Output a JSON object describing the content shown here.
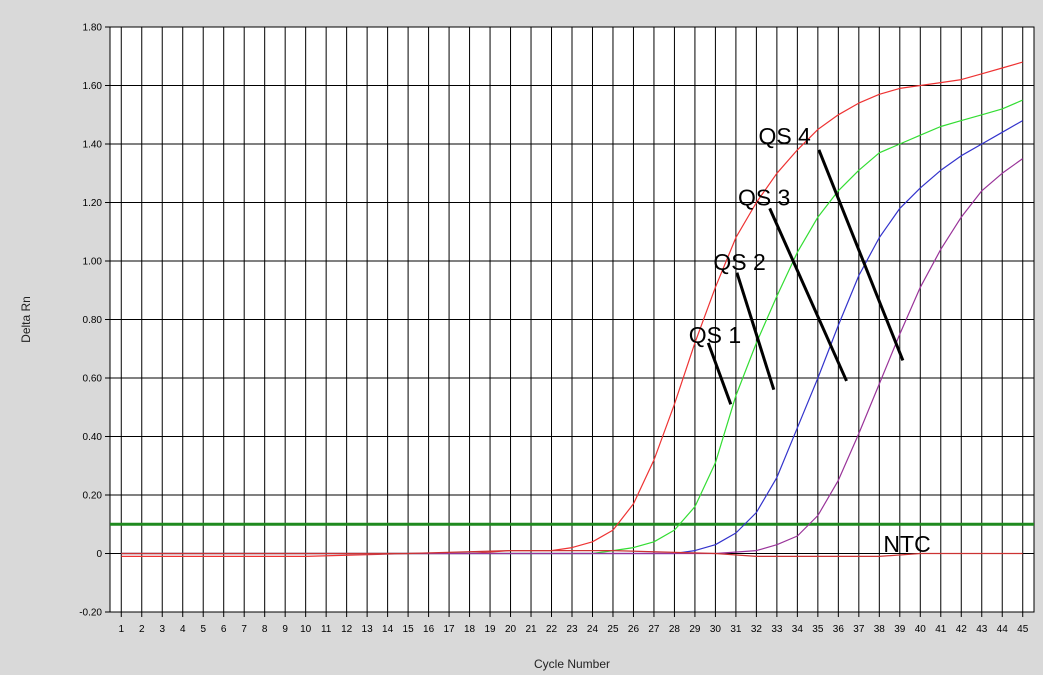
{
  "chart_data": {
    "type": "line",
    "title": "",
    "xlabel": "Cycle Number",
    "ylabel": "Delta Rn",
    "xlim": [
      1,
      45
    ],
    "ylim": [
      -0.2,
      1.8
    ],
    "x_ticks": [
      1,
      2,
      3,
      4,
      5,
      6,
      7,
      8,
      9,
      10,
      11,
      12,
      13,
      14,
      15,
      16,
      17,
      18,
      19,
      20,
      21,
      22,
      23,
      24,
      25,
      26,
      27,
      28,
      29,
      30,
      31,
      32,
      33,
      34,
      35,
      36,
      37,
      38,
      39,
      40,
      41,
      42,
      43,
      44,
      45
    ],
    "y_ticks": [
      {
        "value": 1.8,
        "label": "1.80"
      },
      {
        "value": 1.6,
        "label": "1.60"
      },
      {
        "value": 1.4,
        "label": "1.40"
      },
      {
        "value": 1.2,
        "label": "1.20"
      },
      {
        "value": 1.0,
        "label": "1.00"
      },
      {
        "value": 0.8,
        "label": "0.80"
      },
      {
        "value": 0.6,
        "label": "0.60"
      },
      {
        "value": 0.4,
        "label": "0.40"
      },
      {
        "value": 0.2,
        "label": "0.20"
      },
      {
        "value": 0.0,
        "label": "0"
      },
      {
        "value": -0.2,
        "label": "-0.20"
      }
    ],
    "grid": true,
    "threshold": {
      "value": 0.1,
      "color": "#1f8a1f"
    },
    "series": [
      {
        "key": "qs4",
        "color": "#ee3333",
        "x": [
          1,
          5,
          10,
          15,
          18,
          20,
          21,
          22,
          23,
          24,
          25,
          26,
          27,
          28,
          29,
          30,
          31,
          32,
          33,
          34,
          35,
          36,
          37,
          38,
          39,
          40,
          41,
          42,
          43,
          44,
          45
        ],
        "y": [
          -0.01,
          -0.01,
          -0.01,
          0.0,
          0.0,
          0.01,
          0.01,
          0.01,
          0.02,
          0.04,
          0.08,
          0.17,
          0.32,
          0.51,
          0.72,
          0.91,
          1.08,
          1.2,
          1.3,
          1.38,
          1.45,
          1.5,
          1.54,
          1.57,
          1.59,
          1.6,
          1.61,
          1.62,
          1.64,
          1.66,
          1.68
        ]
      },
      {
        "key": "qs3",
        "color": "#33dd33",
        "x": [
          1,
          5,
          10,
          15,
          20,
          24,
          25,
          26,
          27,
          28,
          29,
          30,
          31,
          32,
          33,
          34,
          35,
          36,
          37,
          38,
          39,
          40,
          41,
          42,
          43,
          44,
          45
        ],
        "y": [
          0.0,
          0.0,
          0.0,
          0.0,
          0.0,
          0.0,
          0.01,
          0.02,
          0.04,
          0.08,
          0.16,
          0.31,
          0.54,
          0.72,
          0.88,
          1.03,
          1.15,
          1.24,
          1.31,
          1.37,
          1.4,
          1.43,
          1.46,
          1.48,
          1.5,
          1.52,
          1.55
        ]
      },
      {
        "key": "qs2",
        "color": "#3333cc",
        "x": [
          1,
          5,
          10,
          15,
          20,
          25,
          28,
          29,
          30,
          31,
          32,
          33,
          34,
          35,
          36,
          37,
          38,
          39,
          40,
          41,
          42,
          43,
          44,
          45
        ],
        "y": [
          0.0,
          0.0,
          0.0,
          0.0,
          0.0,
          0.0,
          0.0,
          0.01,
          0.03,
          0.07,
          0.14,
          0.26,
          0.43,
          0.6,
          0.78,
          0.95,
          1.08,
          1.18,
          1.25,
          1.31,
          1.36,
          1.4,
          1.44,
          1.48
        ]
      },
      {
        "key": "qs1",
        "color": "#993399",
        "x": [
          1,
          5,
          10,
          15,
          20,
          25,
          30,
          32,
          33,
          34,
          35,
          36,
          37,
          38,
          39,
          40,
          41,
          42,
          43,
          44,
          45
        ],
        "y": [
          0.0,
          0.0,
          0.0,
          0.0,
          0.0,
          0.0,
          0.0,
          0.01,
          0.03,
          0.06,
          0.13,
          0.25,
          0.41,
          0.58,
          0.75,
          0.91,
          1.04,
          1.15,
          1.24,
          1.3,
          1.35
        ]
      },
      {
        "key": "ntc",
        "color": "#cc3333",
        "x": [
          1,
          5,
          10,
          15,
          20,
          25,
          30,
          32,
          34,
          36,
          38,
          40,
          42,
          44,
          45
        ],
        "y": [
          0.0,
          0.0,
          0.0,
          0.0,
          0.01,
          0.01,
          0.0,
          -0.01,
          -0.01,
          -0.01,
          -0.01,
          0.0,
          0.0,
          0.0,
          0.0
        ]
      }
    ],
    "annotations": [
      {
        "text": "QS 4",
        "label_x": 32.1,
        "label_y": 1.4,
        "line_from": [
          35.05,
          1.38
        ],
        "line_to": [
          39.15,
          0.66
        ]
      },
      {
        "text": "QS 3",
        "label_x": 31.1,
        "label_y": 1.19,
        "line_from": [
          32.65,
          1.18
        ],
        "line_to": [
          36.4,
          0.59
        ]
      },
      {
        "text": "QS 2",
        "label_x": 29.9,
        "label_y": 0.97,
        "line_from": [
          31.05,
          0.96
        ],
        "line_to": [
          32.85,
          0.56
        ]
      },
      {
        "text": "QS 1",
        "label_x": 28.7,
        "label_y": 0.72,
        "line_from": [
          29.65,
          0.72
        ],
        "line_to": [
          30.75,
          0.51
        ]
      },
      {
        "text": "NTC",
        "label_x": 38.2,
        "label_y": 0.005,
        "line_from": null,
        "line_to": null
      }
    ]
  }
}
